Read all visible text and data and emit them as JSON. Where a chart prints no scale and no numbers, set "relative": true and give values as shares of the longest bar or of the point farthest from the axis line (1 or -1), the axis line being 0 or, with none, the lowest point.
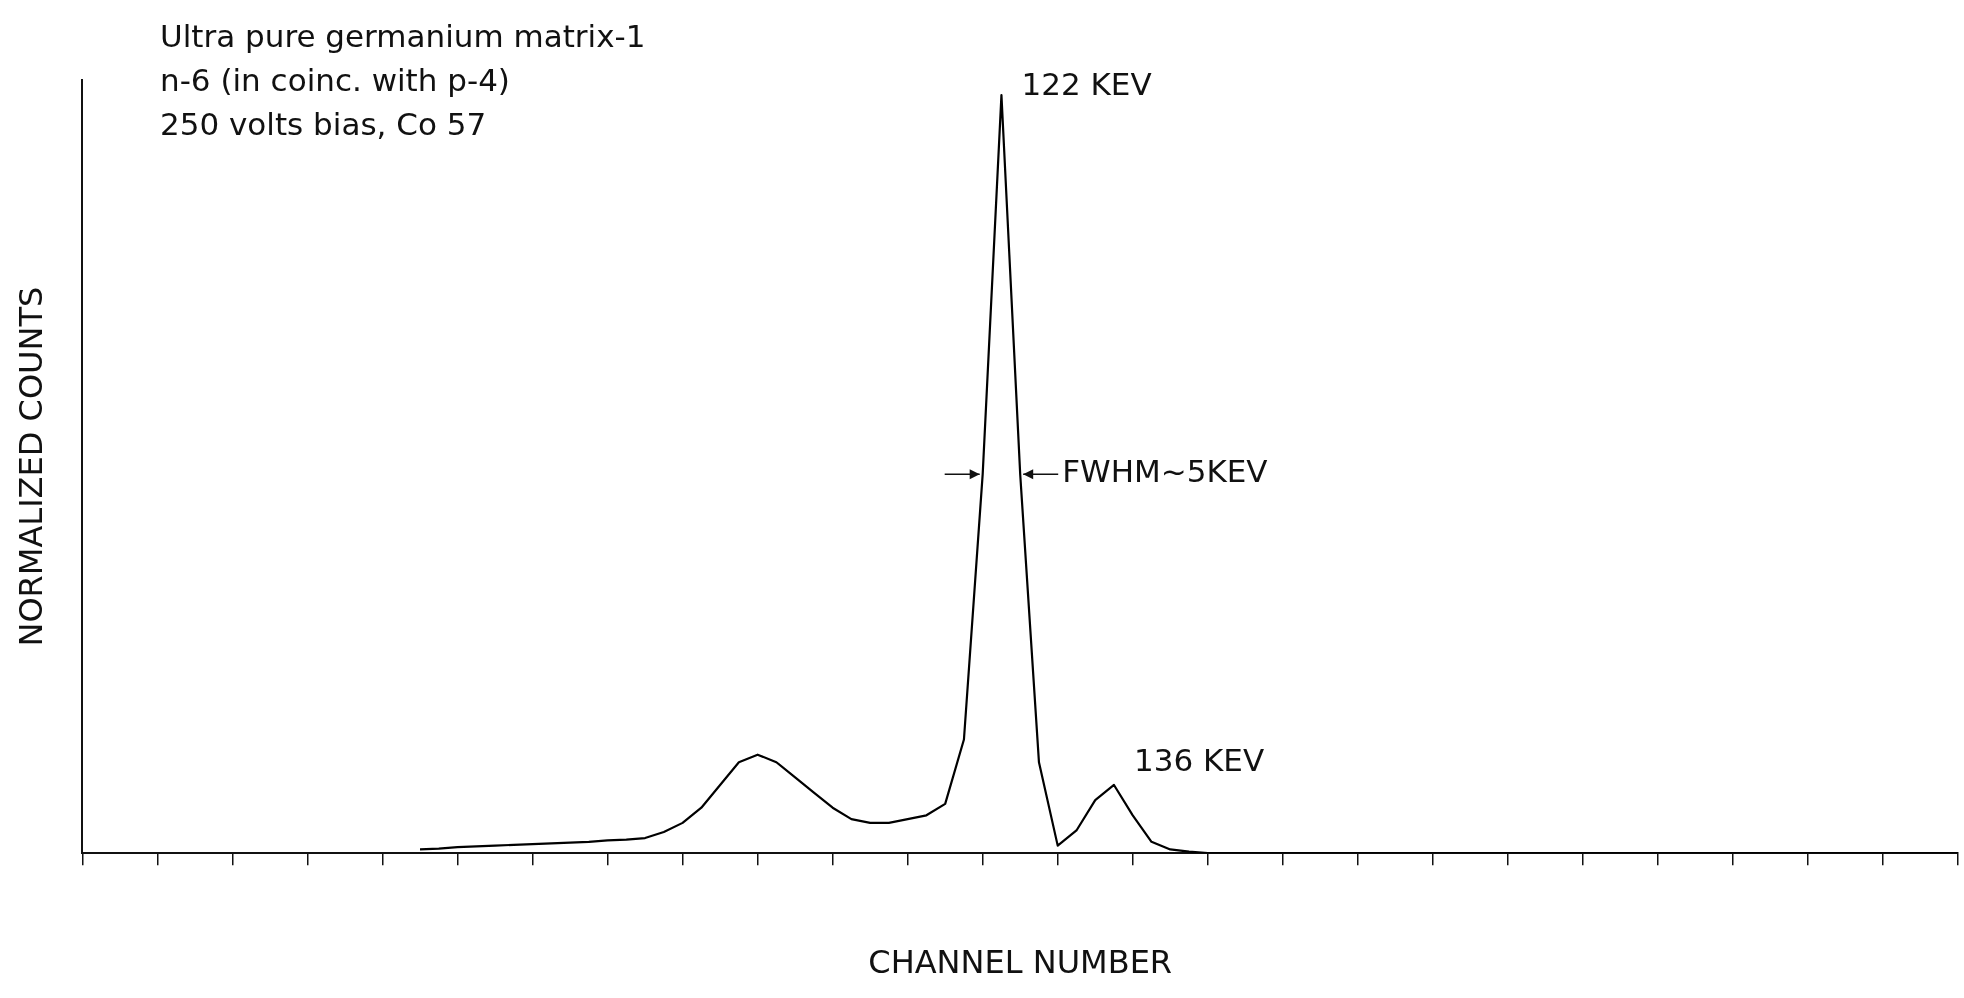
{
  "chart_data": {
    "type": "line",
    "title": "Ultra pure germanium matrix-1",
    "subtitle": "n-6 (in coinc. with p-4)\n250 volts bias, Co 57",
    "xlabel": "CHANNEL NUMBER",
    "ylabel": "NORMALIZED COUNTS",
    "relative": true,
    "legend": false,
    "grid": false,
    "marker": "none",
    "line_style": "solid",
    "categories": [
      null,
      null,
      null,
      null,
      null,
      null,
      null,
      null,
      null,
      null,
      null,
      null,
      null,
      null,
      null,
      null,
      null,
      null,
      null,
      null,
      null,
      null,
      null,
      null,
      null,
      null,
      null,
      null,
      null,
      null,
      null,
      null,
      null,
      null,
      null,
      null,
      null,
      null,
      null,
      null,
      null,
      null,
      null,
      null,
      null,
      null,
      null,
      null,
      null,
      null,
      null,
      null,
      null,
      null,
      null,
      null,
      null,
      null,
      null,
      null,
      null,
      null,
      null,
      null,
      null,
      null,
      null,
      null,
      null,
      null,
      null,
      null,
      null,
      null,
      null,
      null,
      null,
      null,
      null,
      null,
      null,
      null,
      null,
      null,
      null,
      null,
      null,
      null,
      null,
      null,
      null,
      null,
      null,
      null,
      null,
      null,
      null,
      null,
      null,
      null,
      null
    ],
    "series": [
      {
        "color": "#000000",
        "values": [
          null,
          null,
          null,
          null,
          null,
          null,
          null,
          null,
          null,
          null,
          null,
          null,
          null,
          null,
          null,
          null,
          null,
          null,
          0.005,
          0.006,
          0.008,
          0.009,
          0.01,
          0.011,
          0.012,
          0.013,
          0.014,
          0.015,
          0.017,
          0.018,
          0.02,
          0.028,
          0.04,
          0.06,
          0.09,
          0.12,
          0.13,
          0.12,
          0.1,
          0.08,
          0.06,
          0.045,
          0.04,
          0.04,
          0.045,
          0.05,
          0.065,
          0.15,
          0.5,
          1,
          0.5,
          0.12,
          0.01,
          0.03,
          0.07,
          0.09,
          0.05,
          0.015,
          0.005,
          0.002,
          0,
          0,
          0,
          0,
          0,
          0,
          0,
          0,
          0,
          0,
          0,
          0,
          0,
          0,
          0,
          0,
          0,
          0,
          0,
          0,
          0,
          0,
          0,
          0,
          0,
          0,
          0,
          0,
          0,
          0,
          0,
          0,
          0,
          0,
          0,
          0,
          0,
          0,
          0,
          0,
          0
        ]
      }
    ],
    "annotations": [
      "122 KEV",
      "FWHM~5KEV",
      "136 KEV"
    ]
  }
}
